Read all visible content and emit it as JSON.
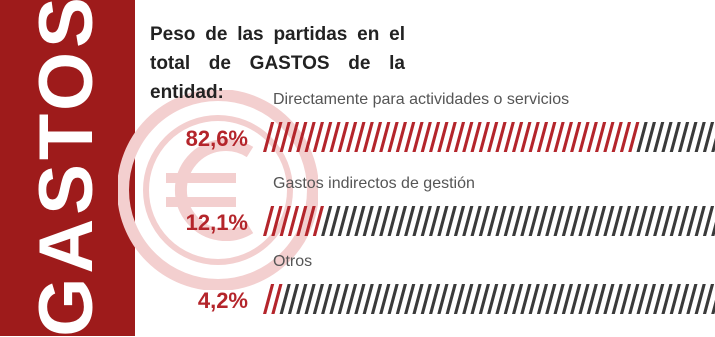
{
  "side_title": "GASTOS",
  "chart_data": {
    "type": "bar",
    "title": "Peso de las partidas en el total de GASTOS de la entidad:",
    "categories": [
      "Directamente para actividades o servicios",
      "Gastos indirectos de gestión",
      "Otros"
    ],
    "values": [
      82.6,
      12.1,
      4.2
    ],
    "value_labels": [
      "82,6%",
      "12,1%",
      "4,2%"
    ],
    "unit": "%",
    "xlim": [
      0,
      100
    ],
    "colors": {
      "fill": "#b4252b",
      "remainder": "#3a3a3a",
      "panel": "#9e1b1b",
      "value_text": "#b4252b"
    }
  }
}
